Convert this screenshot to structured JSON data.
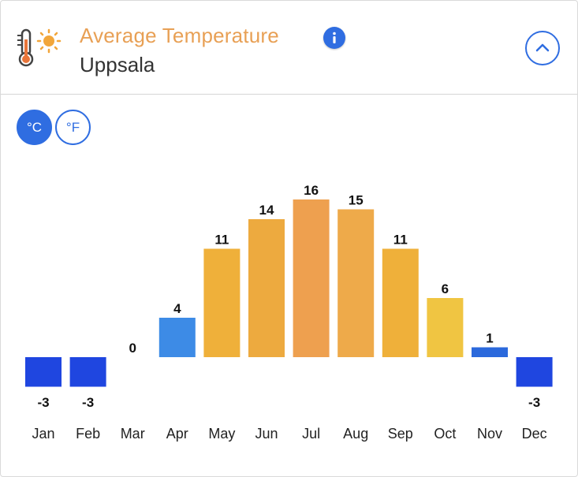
{
  "header": {
    "title": "Average Temperature",
    "location": "Uppsala",
    "weather_icon": "thermometer-sun-icon",
    "info_icon": "info-icon",
    "collapse_icon": "chevron-up-icon"
  },
  "units": {
    "celsius_label": "°C",
    "fahrenheit_label": "°F",
    "selected": "°C"
  },
  "colors": {
    "title": "#e8a055",
    "accent": "#2f6de1",
    "cold": "#1f46e0",
    "cool": "#3d8be6",
    "mild": "#f0c64a",
    "warm": "#eeab3e",
    "hot": "#eea04f"
  },
  "chart_data": {
    "type": "bar",
    "title": "Average Temperature",
    "subtitle": "Uppsala",
    "unit": "°C",
    "categories": [
      "Jan",
      "Feb",
      "Mar",
      "Apr",
      "May",
      "Jun",
      "Jul",
      "Aug",
      "Sep",
      "Oct",
      "Nov",
      "Dec"
    ],
    "values": [
      -3,
      -3,
      0,
      4,
      11,
      14,
      16,
      15,
      11,
      6,
      1,
      -3
    ],
    "bar_colors": [
      "#1f46e0",
      "#1f46e0",
      "#1f46e0",
      "#3d8be6",
      "#efb03a",
      "#edaa3f",
      "#eea04f",
      "#eeaa4a",
      "#efb03a",
      "#f0c542",
      "#2b69dc",
      "#1f46e0"
    ],
    "xlabel": "",
    "ylabel": "",
    "grid": false,
    "legend": "none"
  }
}
